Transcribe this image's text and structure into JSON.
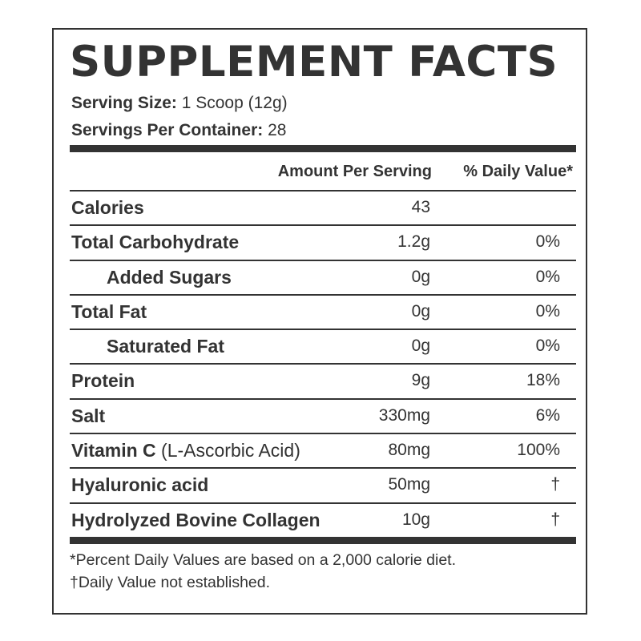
{
  "title": "SUPPLEMENT FACTS",
  "serving": {
    "size_label": "Serving Size:",
    "size_value": "1 Scoop (12g)",
    "per_container_label": "Servings Per Container:",
    "per_container_value": "28"
  },
  "table": {
    "header": {
      "amount": "Amount Per Serving",
      "daily_value": "% Daily Value*"
    },
    "rows": [
      {
        "name": "Calories",
        "note": "",
        "amount": "43",
        "dv": "",
        "indent": false
      },
      {
        "name": "Total Carbohydrate",
        "note": "",
        "amount": "1.2g",
        "dv": "0%",
        "indent": false
      },
      {
        "name": "Added Sugars",
        "note": "",
        "amount": "0g",
        "dv": "0%",
        "indent": true
      },
      {
        "name": "Total Fat",
        "note": "",
        "amount": "0g",
        "dv": "0%",
        "indent": false
      },
      {
        "name": "Saturated Fat",
        "note": "",
        "amount": "0g",
        "dv": "0%",
        "indent": true
      },
      {
        "name": "Protein",
        "note": "",
        "amount": "9g",
        "dv": "18%",
        "indent": false
      },
      {
        "name": "Salt",
        "note": "",
        "amount": "330mg",
        "dv": "6%",
        "indent": false
      },
      {
        "name": "Vitamin C",
        "note": "(L-Ascorbic Acid)",
        "amount": "80mg",
        "dv": "100%",
        "indent": false
      },
      {
        "name": "Hyaluronic acid",
        "note": "",
        "amount": "50mg",
        "dv": "†",
        "indent": false
      },
      {
        "name": "Hydrolyzed Bovine Collagen",
        "note": "",
        "amount": "10g",
        "dv": "†",
        "indent": false
      }
    ]
  },
  "footnotes": {
    "daily_values": "*Percent Daily Values are based on a 2,000 calorie diet.",
    "not_established": "†Daily Value not established."
  },
  "colors": {
    "text": "#333333",
    "background": "#ffffff"
  }
}
